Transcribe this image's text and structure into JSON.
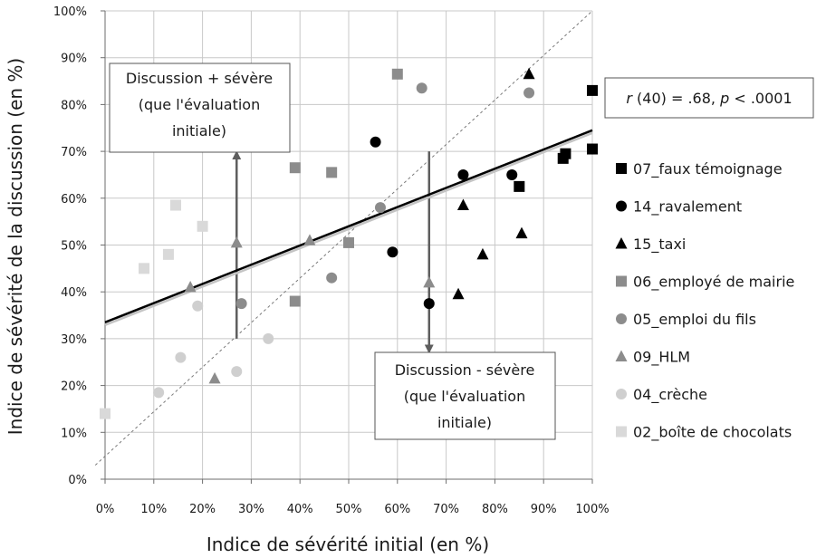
{
  "chart_data": {
    "type": "scatter",
    "xlabel": "Indice de sévérité initial (en %)",
    "ylabel": "Indice de sévérité de la discussion (en %)",
    "xlim": [
      0,
      100
    ],
    "ylim": [
      0,
      100
    ],
    "x_ticks": [
      "0%",
      "10%",
      "20%",
      "30%",
      "40%",
      "50%",
      "60%",
      "70%",
      "80%",
      "90%",
      "100%"
    ],
    "y_ticks": [
      "0%",
      "10%",
      "20%",
      "30%",
      "40%",
      "50%",
      "60%",
      "70%",
      "80%",
      "90%",
      "100%"
    ],
    "grid": true,
    "legend_position": "right",
    "series": [
      {
        "name": "07_faux témoignage",
        "marker": "square",
        "color": "#000000",
        "points": [
          [
            100,
            83
          ],
          [
            100,
            70.5
          ],
          [
            94.5,
            69.5
          ],
          [
            94,
            68.5
          ],
          [
            85,
            62.5
          ]
        ]
      },
      {
        "name": "14_ravalement",
        "marker": "circle",
        "color": "#000000",
        "points": [
          [
            55.5,
            72
          ],
          [
            73.5,
            65
          ],
          [
            83.5,
            65
          ],
          [
            59,
            48.5
          ],
          [
            66.5,
            37.5
          ]
        ]
      },
      {
        "name": "15_taxi",
        "marker": "triangle",
        "color": "#000000",
        "points": [
          [
            87,
            86.5
          ],
          [
            73.5,
            58.5
          ],
          [
            85.5,
            52.5
          ],
          [
            77.5,
            48
          ],
          [
            72.5,
            39.5
          ]
        ]
      },
      {
        "name": "06_employé de mairie",
        "marker": "square",
        "color": "#8c8c8c",
        "points": [
          [
            60,
            86.5
          ],
          [
            39,
            66.5
          ],
          [
            46.5,
            65.5
          ],
          [
            50,
            50.5
          ],
          [
            39,
            38
          ]
        ]
      },
      {
        "name": "05_emploi du fils",
        "marker": "circle",
        "color": "#8c8c8c",
        "points": [
          [
            65,
            83.5
          ],
          [
            87,
            82.5
          ],
          [
            56.5,
            58
          ],
          [
            46.5,
            43
          ],
          [
            28,
            37.5
          ]
        ]
      },
      {
        "name": "09_HLM",
        "marker": "triangle",
        "color": "#8c8c8c",
        "points": [
          [
            27,
            50.5
          ],
          [
            42,
            51
          ],
          [
            17.5,
            41
          ],
          [
            66.5,
            42
          ],
          [
            22.5,
            21.5
          ]
        ]
      },
      {
        "name": "04_crèche",
        "marker": "circle",
        "color": "#cfcfcf",
        "points": [
          [
            19,
            37
          ],
          [
            15.5,
            26
          ],
          [
            11,
            18.5
          ],
          [
            27,
            23
          ],
          [
            33.5,
            30
          ]
        ]
      },
      {
        "name": "02_boîte de chocolats",
        "marker": "square",
        "color": "#d9d9d9",
        "points": [
          [
            14.5,
            58.5
          ],
          [
            20,
            54
          ],
          [
            8,
            45
          ],
          [
            13,
            48
          ],
          [
            0,
            14
          ]
        ]
      }
    ],
    "regression_line": {
      "from": [
        0,
        33.5
      ],
      "to": [
        100,
        74.5
      ]
    },
    "reference_line": {
      "label": "",
      "from": [
        -2,
        3
      ],
      "to": [
        100,
        100
      ]
    },
    "annotations": {
      "upper_box": [
        "Discussion + sévère",
        "(que l'évaluation",
        "initiale)"
      ],
      "lower_box": [
        "Discussion - sévère",
        "(que l'évaluation",
        "initiale)"
      ],
      "up_arrow": {
        "x": 27,
        "from": 30,
        "to": 70
      },
      "down_arrow": {
        "x": 66.5,
        "from": 70,
        "to": 27
      },
      "stat_parts": [
        "r",
        " (40) = .68, ",
        "p",
        " < .0001"
      ]
    }
  }
}
